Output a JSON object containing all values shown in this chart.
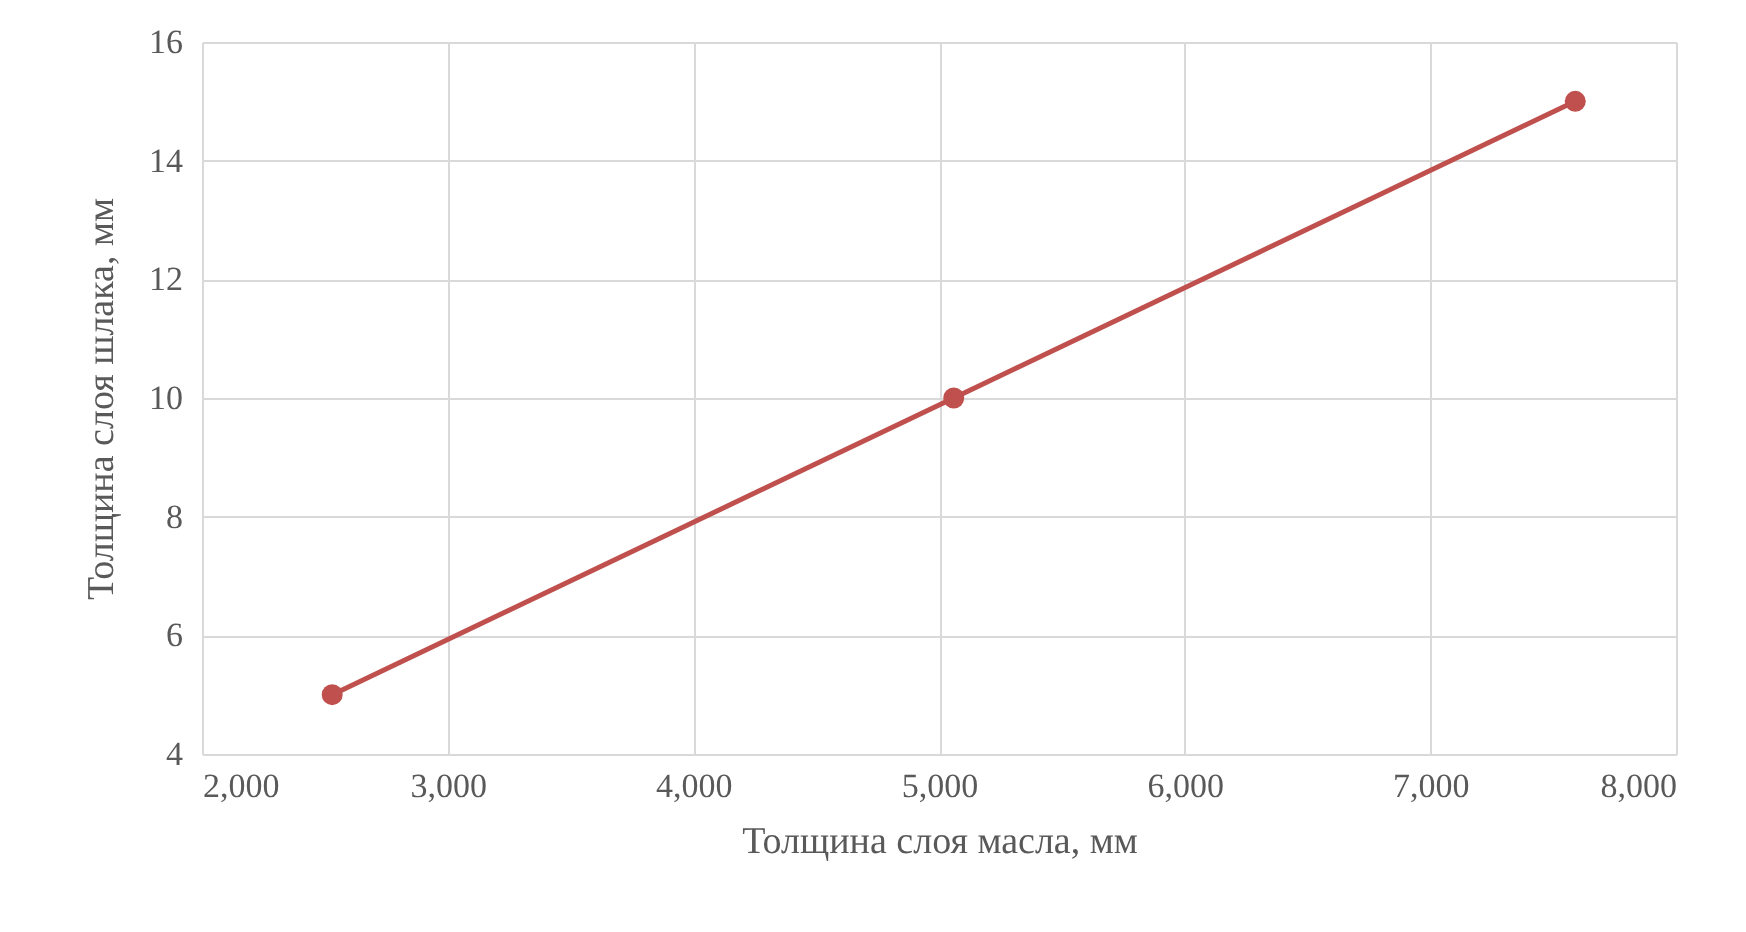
{
  "chart_data": {
    "type": "line",
    "xlabel": "Толщина слоя масла, мм",
    "ylabel": "Толщина слоя шлака, мм",
    "x": [
      2530,
      5060,
      7590
    ],
    "series": [
      {
        "color": "#c0504d",
        "values": [
          5,
          10,
          15
        ]
      }
    ],
    "xlim": [
      2000,
      8000
    ],
    "xticks": [
      {
        "value": 2000,
        "label": "2,000"
      },
      {
        "value": 3000,
        "label": "3,000"
      },
      {
        "value": 4000,
        "label": "4,000"
      },
      {
        "value": 5000,
        "label": "5,000"
      },
      {
        "value": 6000,
        "label": "6,000"
      },
      {
        "value": 7000,
        "label": "7,000"
      },
      {
        "value": 8000,
        "label": "8,000"
      }
    ],
    "ylim": [
      4,
      16
    ],
    "yticks": [
      4,
      6,
      8,
      10,
      12,
      14,
      16
    ],
    "grid": true,
    "marker": "circle",
    "line_style": "solid"
  }
}
